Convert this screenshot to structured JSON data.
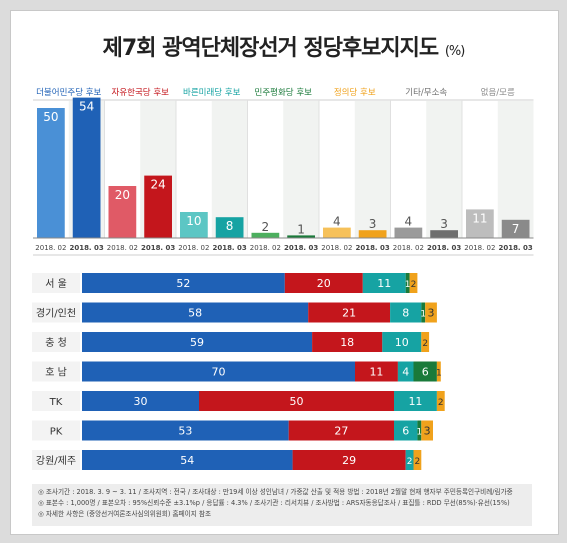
{
  "title": "제7회 광역단체장선거 정당후보지지도",
  "title_unit": "(%)",
  "chart_data": [
    {
      "type": "bar",
      "periods": [
        "2018. 02",
        "2018. 03"
      ],
      "series": [
        {
          "name": "더불어민주당 후보",
          "values": [
            50,
            54
          ],
          "color": "#1f61b6",
          "light": "#4a90d6"
        },
        {
          "name": "자유한국당 후보",
          "values": [
            20,
            24
          ],
          "color": "#c4161c",
          "light": "#e05a66"
        },
        {
          "name": "바른미래당 후보",
          "values": [
            10,
            8
          ],
          "color": "#16a3a3",
          "light": "#5cc6c4"
        },
        {
          "name": "민주평화당 후보",
          "values": [
            2,
            1
          ],
          "color": "#1a7a3a",
          "light": "#4caf5e"
        },
        {
          "name": "정의당 후보",
          "values": [
            4,
            3
          ],
          "color": "#f0a21c",
          "light": "#f6c15a"
        },
        {
          "name": "기타/무소속",
          "values": [
            4,
            3
          ],
          "color": "#6e6e6e",
          "light": "#9a9a9a"
        },
        {
          "name": "없음/모름",
          "values": [
            11,
            7
          ],
          "color": "#8a8a8a",
          "light": "#bdbdbd"
        }
      ]
    },
    {
      "type": "bar",
      "orientation": "horizontal",
      "stacked": true,
      "categories": [
        "서 울",
        "경기/인천",
        "충 청",
        "호 남",
        "TK",
        "PK",
        "강원/제주"
      ],
      "segment_colors": [
        "#1f61b6",
        "#c4161c",
        "#16a3a3",
        "#1a7a3a",
        "#f0a21c"
      ],
      "rows": [
        [
          52,
          20,
          11,
          1,
          2
        ],
        [
          58,
          21,
          8,
          1,
          3
        ],
        [
          59,
          18,
          10,
          0,
          2
        ],
        [
          70,
          11,
          4,
          6,
          1
        ],
        [
          30,
          50,
          11,
          0,
          2
        ],
        [
          53,
          27,
          6,
          1,
          3
        ],
        [
          54,
          29,
          2,
          0,
          2
        ]
      ]
    }
  ],
  "footer": {
    "line1": "◎ 조사기간 : 2018. 3. 9 ~ 3. 11 / 조사지역 : 전국 / 조사대상 : 만19세 이상 성인남녀 / 가중값 산출 및 적용 방법 : 2018년 2월말 현재 행자부 주민등록인구비례/림가중",
    "line2": "◎ 표본수 : 1,000명 / 표본오차 : 95%신뢰수준 ±3.1%p / 응답률 : 4.3% / 조사기관 : 리서치뷰 / 조사방법 : ARS자동응답조사 / 표집틀 : RDD 무선(85%)·유선(15%)",
    "line3": "◎ 자세한 사항은 (중앙선거여론조사심의위원회) 홈페이지 참조"
  }
}
